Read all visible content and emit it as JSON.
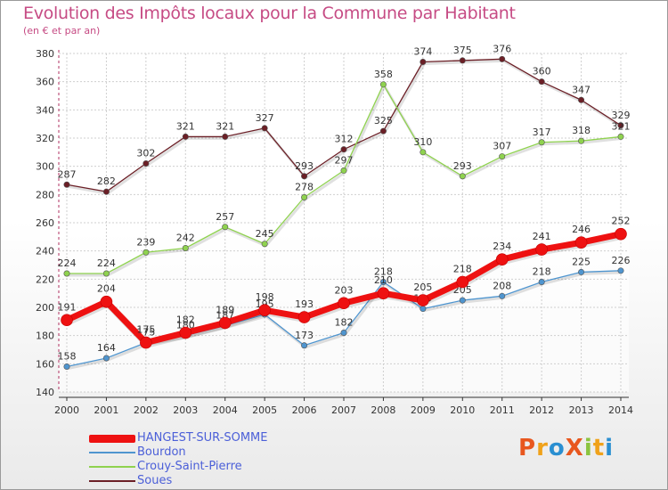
{
  "chart_data": {
    "type": "line",
    "title": "Evolution des Impôts locaux pour la Commune par Habitant",
    "subtitle": "(en € et par an)",
    "x": [
      "2000",
      "2001",
      "2002",
      "2003",
      "2004",
      "2005",
      "2006",
      "2007",
      "2008",
      "2009",
      "2010",
      "2011",
      "2012",
      "2013",
      "2014"
    ],
    "yticks": [
      140,
      160,
      180,
      200,
      220,
      240,
      260,
      280,
      300,
      320,
      340,
      360,
      380
    ],
    "ylim": [
      140,
      380
    ],
    "grid": true,
    "legend_position": "bottom-left",
    "series": [
      {
        "name": "Soues",
        "color": "#6b1f26",
        "values": [
          287,
          282,
          302,
          321,
          321,
          327,
          293,
          312,
          325,
          374,
          375,
          376,
          360,
          347,
          329
        ]
      },
      {
        "name": "Crouy-Saint-Pierre",
        "color": "#8fd24f",
        "values": [
          224,
          224,
          239,
          242,
          257,
          245,
          278,
          297,
          358,
          310,
          293,
          307,
          317,
          318,
          321
        ]
      },
      {
        "name": "Bourdon",
        "color": "#4f95cf",
        "values": [
          158,
          164,
          175,
          180,
          187,
          195,
          173,
          182,
          218,
          199,
          205,
          208,
          218,
          225,
          226
        ]
      },
      {
        "name": "HANGEST-SUR-SOMME",
        "color": "#ee1111",
        "values": [
          191,
          204,
          175,
          182,
          189,
          198,
          193,
          203,
          210,
          205,
          218,
          234,
          241,
          246,
          252
        ]
      }
    ]
  },
  "logo": {
    "text": "ProXiti"
  }
}
